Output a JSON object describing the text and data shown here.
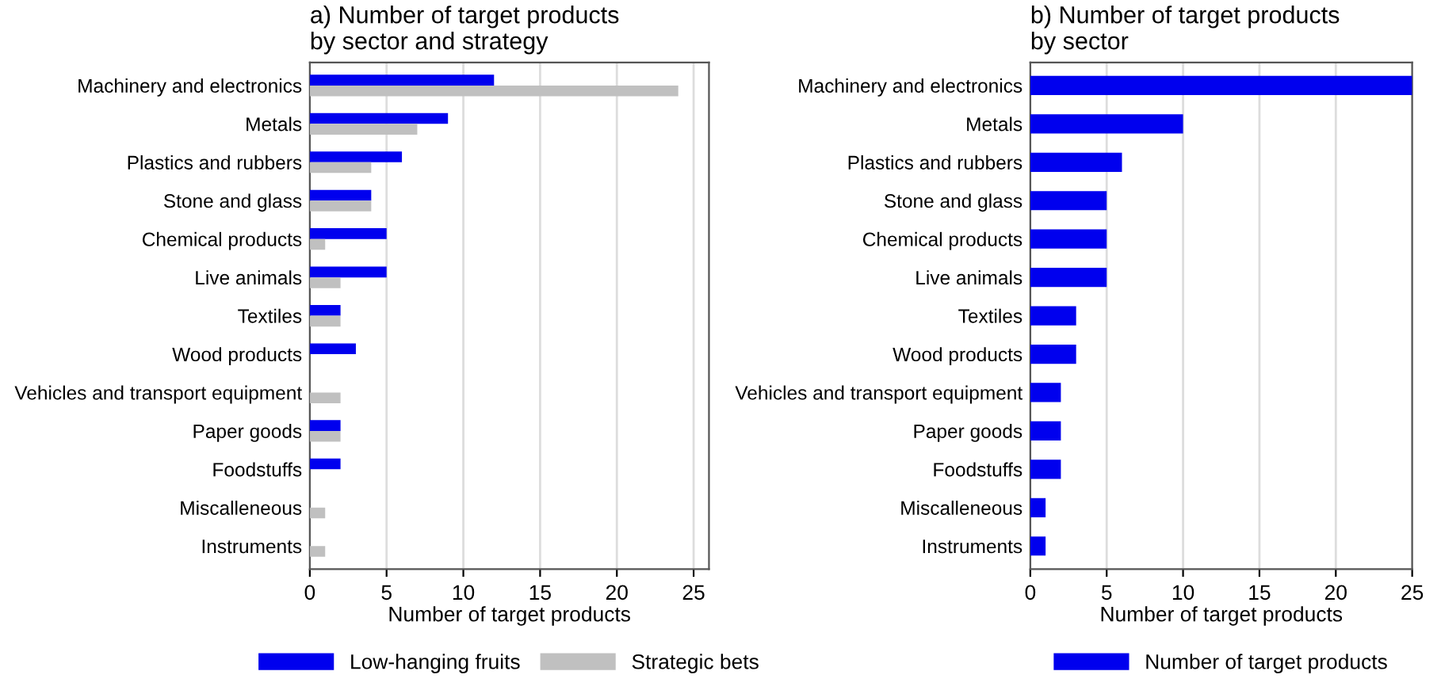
{
  "chart_data": [
    {
      "type": "bar",
      "orientation": "horizontal",
      "title": "a) Number of target products\nby sector and strategy",
      "xlabel": "Number of target products",
      "categories": [
        "Machinery and electronics",
        "Metals",
        "Plastics and rubbers",
        "Stone and glass",
        "Chemical products",
        "Live animals",
        "Textiles",
        "Wood products",
        "Vehicles and transport equipment",
        "Paper goods",
        "Foodstuffs",
        "Miscalleneous",
        "Instruments"
      ],
      "series": [
        {
          "name": "Low-hanging fruits",
          "color": "#0000ee",
          "values": [
            12,
            9,
            6,
            4,
            5,
            5,
            2,
            3,
            0,
            2,
            2,
            0,
            0
          ]
        },
        {
          "name": "Strategic bets",
          "color": "#c0c0c0",
          "values": [
            24,
            7,
            4,
            4,
            1,
            2,
            2,
            0,
            2,
            2,
            0,
            1,
            1
          ]
        }
      ],
      "xlim": [
        0,
        26
      ],
      "xticks": [
        0,
        5,
        10,
        15,
        20,
        25
      ],
      "grid": "x",
      "legend": "bottom"
    },
    {
      "type": "bar",
      "orientation": "horizontal",
      "title": "b) Number of target products\nby sector",
      "xlabel": "Number of target products",
      "categories": [
        "Machinery and electronics",
        "Metals",
        "Plastics and rubbers",
        "Stone and glass",
        "Chemical products",
        "Live animals",
        "Textiles",
        "Wood products",
        "Vehicles and transport equipment",
        "Paper goods",
        "Foodstuffs",
        "Miscalleneous",
        "Instruments"
      ],
      "series": [
        {
          "name": "Number of target products",
          "color": "#0000ee",
          "values": [
            25,
            10,
            6,
            5,
            5,
            5,
            3,
            3,
            2,
            2,
            2,
            1,
            1
          ]
        }
      ],
      "xlim": [
        0,
        25
      ],
      "xticks": [
        0,
        5,
        10,
        15,
        20,
        25
      ],
      "grid": "x",
      "legend": "bottom"
    }
  ]
}
